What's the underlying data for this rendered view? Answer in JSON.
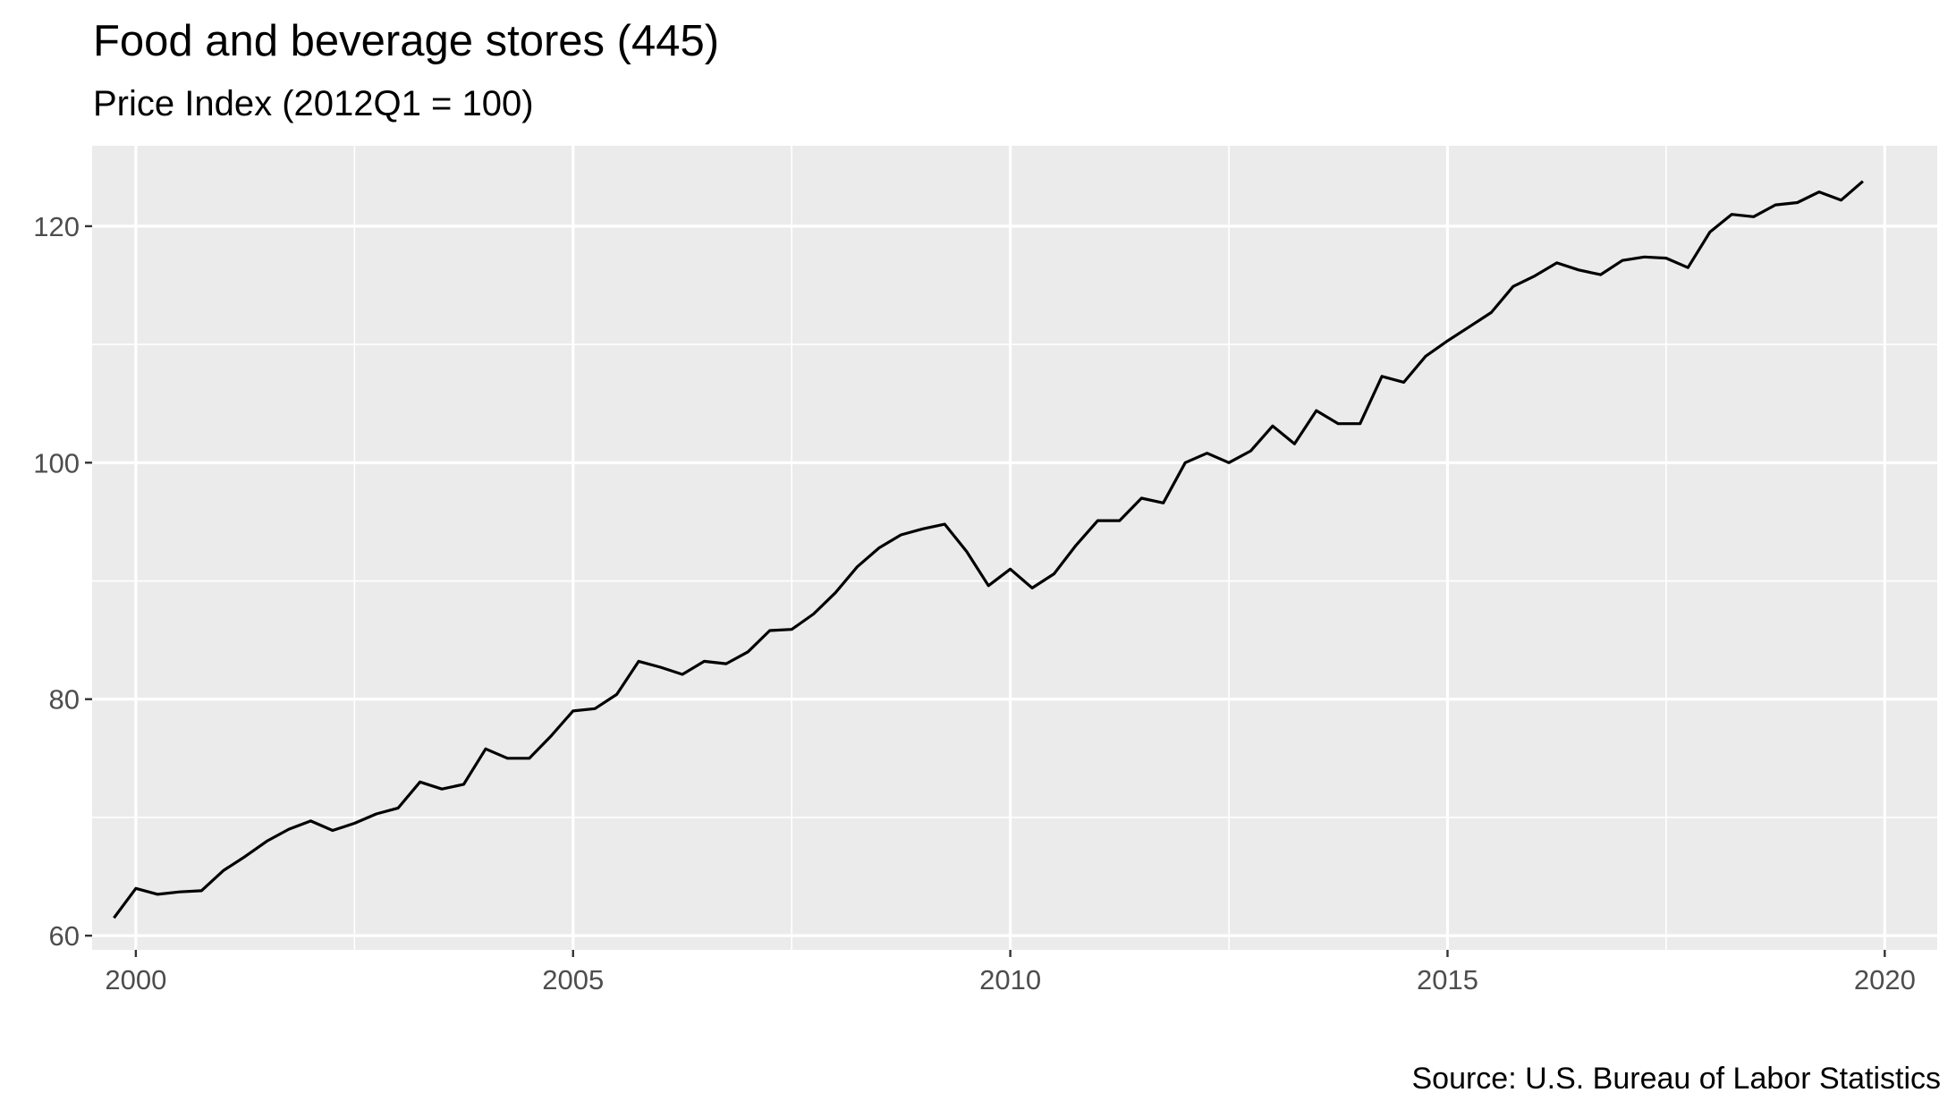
{
  "chart_data": {
    "type": "line",
    "title": "Food and beverage stores (445)",
    "subtitle": "Price Index (2012Q1 = 100)",
    "caption": "Source: U.S. Bureau of Labor Statistics",
    "xlabel": "",
    "ylabel": "",
    "xlim": [
      1999.5,
      2020.6
    ],
    "ylim": [
      58.8,
      126.8
    ],
    "x_ticks": [
      2000,
      2005,
      2010,
      2015,
      2020
    ],
    "y_ticks": [
      60,
      80,
      100,
      120
    ],
    "grid": true,
    "legend": "none",
    "colors": {
      "panel_background": "#ebebeb",
      "grid": "#ffffff",
      "line": "#000000",
      "tick_text": "#4d4d4d"
    },
    "series": [
      {
        "x": [
          1999.75,
          2000.0,
          2000.25,
          2000.5,
          2000.75,
          2001.0,
          2001.25,
          2001.5,
          2001.75,
          2002.0,
          2002.25,
          2002.5,
          2002.75,
          2003.0,
          2003.25,
          2003.5,
          2003.75,
          2004.0,
          2004.25,
          2004.5,
          2004.75,
          2005.0,
          2005.25,
          2005.5,
          2005.75,
          2006.0,
          2006.25,
          2006.5,
          2006.75,
          2007.0,
          2007.25,
          2007.5,
          2007.75,
          2008.0,
          2008.25,
          2008.5,
          2008.75,
          2009.0,
          2009.25,
          2009.5,
          2009.75,
          2010.0,
          2010.25,
          2010.5,
          2010.75,
          2011.0,
          2011.25,
          2011.5,
          2011.75,
          2012.0,
          2012.25,
          2012.5,
          2012.75,
          2013.0,
          2013.25,
          2013.5,
          2013.75,
          2014.0,
          2014.25,
          2014.5,
          2014.75,
          2015.0,
          2015.25,
          2015.5,
          2015.75,
          2016.0,
          2016.25,
          2016.5,
          2016.75,
          2017.0,
          2017.25,
          2017.5,
          2017.75,
          2018.0,
          2018.25,
          2018.5,
          2018.75,
          2019.0,
          2019.25,
          2019.5,
          2019.75
        ],
        "values": [
          61.5,
          64.0,
          63.5,
          63.7,
          63.8,
          65.5,
          66.7,
          68.0,
          69.0,
          69.7,
          68.9,
          69.5,
          70.3,
          70.8,
          73.0,
          72.4,
          72.8,
          75.8,
          75.0,
          75.0,
          76.9,
          79.0,
          79.2,
          80.4,
          83.2,
          82.7,
          82.1,
          83.2,
          83.0,
          84.0,
          85.8,
          85.9,
          87.2,
          89.0,
          91.2,
          92.8,
          93.9,
          94.4,
          94.8,
          92.5,
          89.6,
          91.0,
          89.4,
          90.6,
          93.0,
          95.1,
          95.1,
          97.0,
          96.6,
          100.0,
          100.8,
          100.0,
          101.0,
          103.1,
          101.6,
          104.4,
          103.3,
          103.3,
          107.3,
          106.8,
          109.0,
          110.3,
          111.5,
          112.7,
          114.9,
          115.8,
          116.9,
          116.3,
          115.9,
          117.1,
          117.4,
          117.3,
          116.5,
          119.5,
          121.0,
          120.8,
          121.8,
          122.0,
          122.9,
          122.2,
          123.8
        ]
      }
    ]
  }
}
